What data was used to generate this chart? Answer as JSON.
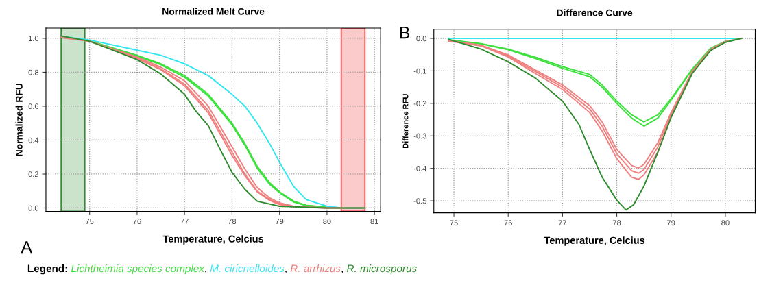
{
  "chart_data": [
    {
      "type": "line",
      "title": "Normalized Melt Curve",
      "xlabel": "Temperature, Celcius",
      "ylabel": "Normalized RFU",
      "annotations": [
        "A",
        ",",
        ",",
        ","
      ],
      "legend_title": "Legend:",
      "legend": "bottom",
      "grid": true,
      "xlim": [
        74.08,
        81.13
      ],
      "xticks": [
        75,
        76,
        77,
        78,
        79,
        80,
        81
      ],
      "ylim": [
        -0.02,
        1.06
      ],
      "yticks": [
        {
          "value": 0,
          "label": "0.0"
        },
        {
          "value": 0.2,
          "label": "0.2"
        },
        {
          "value": 0.4,
          "label": "0.4"
        },
        {
          "value": 0.6,
          "label": "0.6"
        },
        {
          "value": 0.8,
          "label": "0.8"
        },
        {
          "value": 1,
          "label": "1.0"
        }
      ],
      "bands": [
        {
          "axis": "x",
          "from": 74.4,
          "to": 74.9,
          "color": "#2e8b2e"
        },
        {
          "axis": "x",
          "from": 80.3,
          "to": 80.8,
          "color": "#ee3030"
        }
      ],
      "series": [
        {
          "name": "Lichtheimia species complex",
          "color": "#3de03d",
          "x": [
            74.4,
            75,
            76,
            76.5,
            77,
            77.5,
            78,
            78.27,
            78.53,
            78.79,
            79,
            79.3,
            79.56,
            80,
            80.33,
            80.8
          ],
          "values": [
            1.01,
            0.985,
            0.9,
            0.85,
            0.78,
            0.67,
            0.5,
            0.38,
            0.245,
            0.15,
            0.095,
            0.04,
            0.016,
            0.004,
            0,
            0
          ]
        },
        {
          "color": "#3de03d",
          "x": [
            74.4,
            75,
            76,
            76.5,
            77,
            77.5,
            78,
            78.27,
            78.53,
            78.79,
            79,
            79.3,
            79.56,
            80
          ],
          "values": [
            1.008,
            0.985,
            0.895,
            0.845,
            0.77,
            0.66,
            0.49,
            0.37,
            0.235,
            0.14,
            0.09,
            0.035,
            0.014,
            0.003
          ]
        },
        {
          "name": "M. ciricnelloides",
          "color": "#33e6f0",
          "x": [
            74.4,
            75,
            76,
            76.5,
            77,
            77.5,
            78,
            78.27,
            78.53,
            78.79,
            79,
            79.3,
            79.56,
            80,
            80.33,
            80.8
          ],
          "values": [
            1.012,
            0.99,
            0.93,
            0.9,
            0.85,
            0.78,
            0.67,
            0.6,
            0.5,
            0.38,
            0.27,
            0.125,
            0.05,
            0.01,
            0,
            0
          ]
        },
        {
          "name": "R. arrhizus",
          "color": "#f08080",
          "x": [
            74.4,
            75,
            76,
            76.5,
            77,
            77.5,
            78,
            78.27,
            78.53,
            78.79,
            79,
            79.3,
            79.56,
            80,
            80.33,
            80.8
          ],
          "values": [
            1.01,
            0.983,
            0.89,
            0.83,
            0.75,
            0.6,
            0.36,
            0.23,
            0.12,
            0.06,
            0.03,
            0.01,
            0.006,
            0,
            0,
            0
          ]
        },
        {
          "color": "#f08080",
          "x": [
            74.4,
            75,
            76,
            76.5,
            77,
            77.5,
            78,
            78.27,
            78.53,
            78.79,
            79,
            79.3,
            79.56,
            80,
            80.33
          ],
          "values": [
            1.006,
            0.983,
            0.885,
            0.82,
            0.73,
            0.575,
            0.33,
            0.2,
            0.1,
            0.05,
            0.025,
            0.008,
            0.004,
            0,
            0
          ]
        },
        {
          "color": "#f08080",
          "x": [
            74.4,
            75,
            76,
            76.5,
            77,
            77.5,
            78,
            78.27,
            78.53,
            78.79,
            79,
            79.3,
            79.56,
            80
          ],
          "values": [
            1.004,
            0.982,
            0.88,
            0.815,
            0.72,
            0.56,
            0.31,
            0.19,
            0.095,
            0.045,
            0.02,
            0.006,
            0.003,
            0
          ]
        },
        {
          "name": "R. microsporus",
          "color": "#2e8b2e",
          "x": [
            74.4,
            75,
            76,
            76.5,
            77,
            77.24,
            77.5,
            77.76,
            78,
            78.27,
            78.53,
            79,
            80,
            80.8
          ],
          "values": [
            1.014,
            0.983,
            0.875,
            0.79,
            0.67,
            0.57,
            0.485,
            0.34,
            0.21,
            0.11,
            0.04,
            0.01,
            0,
            0
          ]
        }
      ]
    },
    {
      "type": "line",
      "title": "Difference Curve",
      "xlabel": "Temperature, Celcius",
      "ylabel": "Difference RFU",
      "annotations": [
        "B"
      ],
      "grid": true,
      "xlim": [
        74.63,
        80.55
      ],
      "xticks": [
        75,
        76,
        77,
        78,
        79,
        80
      ],
      "ylim": [
        -0.537,
        0.028
      ],
      "yticks": [
        {
          "value": 0,
          "label": "0.0"
        },
        -0.1,
        -0.2,
        -0.3,
        -0.4,
        -0.5
      ],
      "series": [
        {
          "color": "#33e6f0",
          "x": [
            74.9,
            75.5,
            76,
            77,
            78,
            79,
            80,
            80.3
          ],
          "values": [
            0,
            0,
            0,
            0,
            0,
            0,
            0,
            0
          ]
        },
        {
          "color": "#3de03d",
          "x": [
            74.9,
            75.5,
            76,
            76.5,
            77,
            77.5,
            77.73,
            78,
            78.27,
            78.5,
            78.76,
            79,
            79.39,
            79.73,
            80,
            80.3
          ],
          "values": [
            -0.004,
            -0.016,
            -0.033,
            -0.058,
            -0.087,
            -0.111,
            -0.143,
            -0.193,
            -0.235,
            -0.257,
            -0.235,
            -0.186,
            -0.094,
            -0.03,
            -0.009,
            0
          ]
        },
        {
          "color": "#3de03d",
          "x": [
            74.9,
            75.5,
            76,
            76.5,
            77,
            77.5,
            77.73,
            78,
            78.27,
            78.5,
            78.76,
            79,
            79.39,
            79.73,
            80
          ],
          "values": [
            -0.005,
            -0.017,
            -0.035,
            -0.062,
            -0.092,
            -0.118,
            -0.15,
            -0.2,
            -0.245,
            -0.27,
            -0.245,
            -0.19,
            -0.096,
            -0.031,
            -0.009
          ]
        },
        {
          "color": "#f08080",
          "x": [
            74.9,
            75.5,
            76,
            76.5,
            77,
            77.5,
            77.73,
            78,
            78.27,
            78.4,
            78.5,
            78.76,
            79,
            79.39,
            79.73,
            80,
            80.3
          ],
          "values": [
            -0.006,
            -0.021,
            -0.051,
            -0.097,
            -0.143,
            -0.207,
            -0.257,
            -0.342,
            -0.391,
            -0.399,
            -0.388,
            -0.32,
            -0.228,
            -0.101,
            -0.033,
            -0.01,
            0
          ]
        },
        {
          "color": "#f08080",
          "x": [
            74.9,
            75.5,
            76,
            76.5,
            77,
            77.5,
            77.73,
            78,
            78.27,
            78.4,
            78.5,
            78.76,
            79,
            79.39,
            79.73,
            80
          ],
          "values": [
            -0.007,
            -0.022,
            -0.054,
            -0.102,
            -0.15,
            -0.217,
            -0.27,
            -0.355,
            -0.407,
            -0.415,
            -0.404,
            -0.333,
            -0.235,
            -0.103,
            -0.034,
            -0.01
          ]
        },
        {
          "color": "#f08080",
          "x": [
            74.9,
            75.5,
            76,
            76.5,
            77,
            77.5,
            77.73,
            78,
            78.27,
            78.4,
            78.5,
            78.76,
            79,
            79.39,
            79.73
          ],
          "values": [
            -0.008,
            -0.023,
            -0.057,
            -0.108,
            -0.157,
            -0.228,
            -0.285,
            -0.37,
            -0.427,
            -0.434,
            -0.42,
            -0.349,
            -0.243,
            -0.106,
            -0.035
          ]
        },
        {
          "color": "#2e8b2e",
          "x": [
            74.9,
            75.5,
            76,
            76.5,
            77,
            77.3,
            77.5,
            77.73,
            78,
            78.17,
            78.31,
            78.5,
            78.76,
            79,
            79.39,
            79.73,
            80,
            80.3
          ],
          "values": [
            -0.003,
            -0.033,
            -0.072,
            -0.122,
            -0.193,
            -0.264,
            -0.342,
            -0.427,
            -0.498,
            -0.528,
            -0.512,
            -0.455,
            -0.349,
            -0.243,
            -0.108,
            -0.037,
            -0.012,
            0
          ]
        }
      ]
    }
  ]
}
